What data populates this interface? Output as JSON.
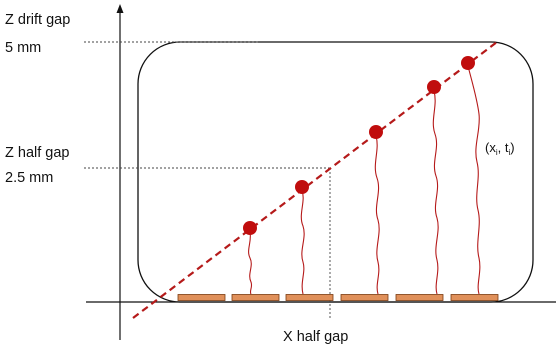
{
  "labels": {
    "z_drift_gap": "Z drift gap",
    "z_drift_value": "5 mm",
    "z_half_gap": "Z half gap",
    "z_half_value": "2.5 mm",
    "x_half_gap": "X half gap",
    "hit_label_prefix": "(x",
    "hit_label_sub_x": "i",
    "hit_label_mid": ", t",
    "hit_label_sub_t": "i",
    "hit_label_suffix": ")"
  },
  "colors": {
    "axis": "#111111",
    "box": "#111111",
    "track": "#b51a1a",
    "hit": "#c00d0d",
    "drift": "#b51a1a",
    "strip_fill": "#e0905a",
    "strip_stroke": "#7a3a10",
    "guide": "#444444"
  },
  "strips": {
    "count": 6
  },
  "hits": {
    "count": 5
  }
}
